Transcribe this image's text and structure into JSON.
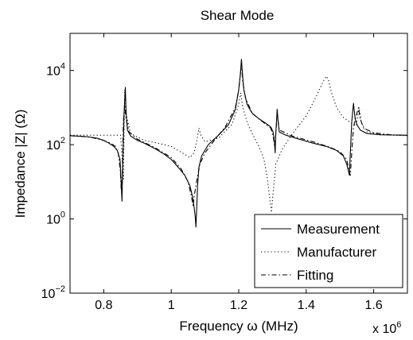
{
  "chart_data": {
    "type": "line",
    "title": "Shear Mode",
    "xlabel": "Frequency ω (MHz)",
    "ylabel": "Impedance |Z| (Ω)",
    "x_multiplier_label": "x 10",
    "x_multiplier_exponent": "6",
    "x_scale": "linear",
    "y_scale": "log",
    "xlim": [
      700000,
      1700000
    ],
    "ylim": [
      0.01,
      100000
    ],
    "x_ticks": [
      800000,
      1000000,
      1200000,
      1400000,
      1600000
    ],
    "x_tick_labels": [
      "0.8",
      "1",
      "1.2",
      "1.4",
      "1.6"
    ],
    "y_ticks": [
      0.01,
      1,
      100,
      10000
    ],
    "y_tick_labels": [
      {
        "base": "10",
        "exp": "−2"
      },
      {
        "base": "10",
        "exp": "0"
      },
      {
        "base": "10",
        "exp": "2"
      },
      {
        "base": "10",
        "exp": "4"
      }
    ],
    "grid": false,
    "legend_position": "bottom-right",
    "series": [
      {
        "name": "Measurement",
        "style": "solid",
        "color": "#000000",
        "points": [
          [
            700000,
            175
          ],
          [
            750000,
            165
          ],
          [
            780000,
            150
          ],
          [
            800000,
            130
          ],
          [
            815000,
            110
          ],
          [
            830000,
            90
          ],
          [
            840000,
            70
          ],
          [
            848000,
            40
          ],
          [
            852000,
            8
          ],
          [
            854000,
            3
          ],
          [
            856000,
            20
          ],
          [
            860000,
            600
          ],
          [
            864000,
            3500
          ],
          [
            866000,
            800
          ],
          [
            870000,
            250
          ],
          [
            880000,
            170
          ],
          [
            900000,
            130
          ],
          [
            920000,
            110
          ],
          [
            950000,
            80
          ],
          [
            980000,
            55
          ],
          [
            1000000,
            40
          ],
          [
            1020000,
            25
          ],
          [
            1040000,
            15
          ],
          [
            1055000,
            8
          ],
          [
            1063000,
            4
          ],
          [
            1068000,
            2
          ],
          [
            1071000,
            1.2
          ],
          [
            1073000,
            0.6
          ],
          [
            1075000,
            1.5
          ],
          [
            1078000,
            8
          ],
          [
            1082000,
            25
          ],
          [
            1090000,
            50
          ],
          [
            1110000,
            100
          ],
          [
            1140000,
            180
          ],
          [
            1170000,
            350
          ],
          [
            1190000,
            900
          ],
          [
            1200000,
            3000
          ],
          [
            1205000,
            8000
          ],
          [
            1208000,
            20000
          ],
          [
            1211000,
            8000
          ],
          [
            1215000,
            3000
          ],
          [
            1225000,
            1200
          ],
          [
            1240000,
            700
          ],
          [
            1260000,
            500
          ],
          [
            1280000,
            380
          ],
          [
            1295000,
            300
          ],
          [
            1302000,
            220
          ],
          [
            1306000,
            120
          ],
          [
            1308000,
            60
          ],
          [
            1310000,
            200
          ],
          [
            1314000,
            900
          ],
          [
            1317000,
            400
          ],
          [
            1320000,
            220
          ],
          [
            1340000,
            180
          ],
          [
            1380000,
            140
          ],
          [
            1420000,
            110
          ],
          [
            1460000,
            90
          ],
          [
            1490000,
            70
          ],
          [
            1510000,
            50
          ],
          [
            1520000,
            30
          ],
          [
            1525000,
            20
          ],
          [
            1528000,
            15
          ],
          [
            1530000,
            40
          ],
          [
            1535000,
            400
          ],
          [
            1540000,
            1300
          ],
          [
            1545000,
            500
          ],
          [
            1550000,
            350
          ],
          [
            1560000,
            250
          ],
          [
            1580000,
            200
          ],
          [
            1620000,
            185
          ],
          [
            1660000,
            182
          ],
          [
            1700000,
            180
          ]
        ]
      },
      {
        "name": "Manufacturer",
        "style": "dotted",
        "color": "#000000",
        "points": [
          [
            700000,
            180
          ],
          [
            760000,
            180
          ],
          [
            820000,
            180
          ],
          [
            850000,
            180
          ],
          [
            855000,
            40
          ],
          [
            858000,
            12
          ],
          [
            862000,
            3000
          ],
          [
            867000,
            600
          ],
          [
            880000,
            200
          ],
          [
            920000,
            130
          ],
          [
            960000,
            110
          ],
          [
            1000000,
            90
          ],
          [
            1020000,
            70
          ],
          [
            1040000,
            55
          ],
          [
            1055000,
            45
          ],
          [
            1068000,
            60
          ],
          [
            1075000,
            120
          ],
          [
            1082000,
            280
          ],
          [
            1088000,
            180
          ],
          [
            1100000,
            120
          ],
          [
            1140000,
            150
          ],
          [
            1180000,
            350
          ],
          [
            1200000,
            1200
          ],
          [
            1206000,
            2500
          ],
          [
            1212000,
            1000
          ],
          [
            1225000,
            400
          ],
          [
            1240000,
            200
          ],
          [
            1260000,
            90
          ],
          [
            1275000,
            40
          ],
          [
            1285000,
            12
          ],
          [
            1293000,
            3
          ],
          [
            1297000,
            1.5
          ],
          [
            1301000,
            4
          ],
          [
            1310000,
            30
          ],
          [
            1330000,
            80
          ],
          [
            1360000,
            200
          ],
          [
            1400000,
            600
          ],
          [
            1430000,
            2000
          ],
          [
            1450000,
            5000
          ],
          [
            1460000,
            7000
          ],
          [
            1466000,
            5500
          ],
          [
            1475000,
            2500
          ],
          [
            1490000,
            1000
          ],
          [
            1510000,
            550
          ],
          [
            1530000,
            400
          ],
          [
            1548000,
            320
          ],
          [
            1553000,
            600
          ],
          [
            1557000,
            1000
          ],
          [
            1563000,
            400
          ],
          [
            1580000,
            220
          ],
          [
            1620000,
            190
          ],
          [
            1660000,
            180
          ],
          [
            1700000,
            175
          ]
        ]
      },
      {
        "name": "Fitting",
        "style": "dashdot",
        "color": "#000000",
        "points": [
          [
            700000,
            175
          ],
          [
            760000,
            160
          ],
          [
            800000,
            130
          ],
          [
            820000,
            110
          ],
          [
            835000,
            90
          ],
          [
            843000,
            60
          ],
          [
            849000,
            20
          ],
          [
            852000,
            6
          ],
          [
            855000,
            15
          ],
          [
            858000,
            400
          ],
          [
            862000,
            1200
          ],
          [
            866000,
            500
          ],
          [
            875000,
            220
          ],
          [
            900000,
            140
          ],
          [
            950000,
            85
          ],
          [
            1000000,
            45
          ],
          [
            1030000,
            22
          ],
          [
            1050000,
            10
          ],
          [
            1060000,
            4
          ],
          [
            1065000,
            2.2
          ],
          [
            1068000,
            4
          ],
          [
            1075000,
            10
          ],
          [
            1085000,
            30
          ],
          [
            1100000,
            60
          ],
          [
            1130000,
            140
          ],
          [
            1160000,
            300
          ],
          [
            1190000,
            1000
          ],
          [
            1200000,
            3000
          ],
          [
            1208000,
            15000
          ],
          [
            1212000,
            5000
          ],
          [
            1220000,
            1800
          ],
          [
            1240000,
            700
          ],
          [
            1270000,
            420
          ],
          [
            1295000,
            280
          ],
          [
            1303000,
            150
          ],
          [
            1307000,
            80
          ],
          [
            1310000,
            200
          ],
          [
            1314000,
            700
          ],
          [
            1320000,
            250
          ],
          [
            1360000,
            170
          ],
          [
            1420000,
            120
          ],
          [
            1470000,
            85
          ],
          [
            1500000,
            65
          ],
          [
            1520000,
            40
          ],
          [
            1528000,
            18
          ],
          [
            1531000,
            15
          ],
          [
            1535000,
            60
          ],
          [
            1540000,
            300
          ],
          [
            1548000,
            600
          ],
          [
            1555000,
            1000
          ],
          [
            1560000,
            500
          ],
          [
            1570000,
            280
          ],
          [
            1600000,
            210
          ],
          [
            1650000,
            185
          ],
          [
            1700000,
            180
          ]
        ]
      }
    ]
  }
}
